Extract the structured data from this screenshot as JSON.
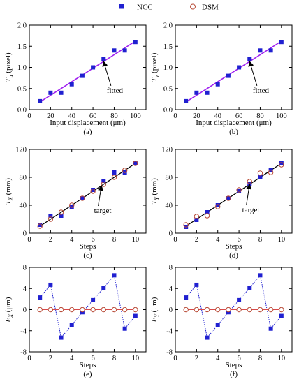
{
  "legend": {
    "items": [
      {
        "label": "NCC",
        "marker": "square",
        "color": "#2020d0"
      },
      {
        "label": "DSM",
        "marker": "circle",
        "color": "#b84a36"
      }
    ]
  },
  "colors": {
    "ncc": "#2020d0",
    "dsm": "#b84a36",
    "fit": "#a020f0",
    "target": "#000000",
    "zero_line": "#d84a4a",
    "ncc_line": "#2020d0"
  },
  "chart_data": [
    {
      "type": "scatter",
      "caption": "(a)",
      "xlabel": "Input displacement (μm)",
      "ylabel_main": "T",
      "ylabel_sub": "u",
      "ylabel_rest": " (pixel)",
      "xlim": [
        0,
        110
      ],
      "ylim": [
        0,
        2
      ],
      "xticks": [
        "0",
        "20",
        "40",
        "60",
        "80",
        "100"
      ],
      "xtick_values": [
        0,
        20,
        40,
        60,
        80,
        100
      ],
      "yticks": [
        "0.0",
        "0.5",
        "1.0",
        "1.5",
        "2.0"
      ],
      "ytick_values": [
        0,
        0.5,
        1,
        1.5,
        2
      ],
      "series": [
        {
          "name": "NCC",
          "x": [
            10,
            20,
            30,
            40,
            50,
            60,
            70,
            80,
            90,
            100
          ],
          "y": [
            0.2,
            0.4,
            0.4,
            0.6,
            0.8,
            1.0,
            1.2,
            1.4,
            1.4,
            1.6
          ]
        }
      ],
      "line": {
        "x": [
          10,
          100
        ],
        "y": [
          0.18,
          1.62
        ]
      },
      "annotation": {
        "text": "fitted",
        "xy": [
          70,
          1.14
        ],
        "text_xy": [
          73,
          0.4
        ]
      }
    },
    {
      "type": "scatter",
      "caption": "(b)",
      "xlabel": "Input displacement (μm)",
      "ylabel_main": "T",
      "ylabel_sub": "v",
      "ylabel_rest": " (pixel)",
      "xlim": [
        0,
        110
      ],
      "ylim": [
        0,
        2
      ],
      "xticks": [
        "0",
        "20",
        "40",
        "60",
        "80",
        "100"
      ],
      "xtick_values": [
        0,
        20,
        40,
        60,
        80,
        100
      ],
      "yticks": [
        "0.0",
        "0.5",
        "1.0",
        "1.5",
        "2.0"
      ],
      "ytick_values": [
        0,
        0.5,
        1,
        1.5,
        2
      ],
      "series": [
        {
          "name": "NCC",
          "x": [
            10,
            20,
            30,
            40,
            50,
            60,
            70,
            80,
            90,
            100
          ],
          "y": [
            0.2,
            0.4,
            0.4,
            0.6,
            0.8,
            1.0,
            1.2,
            1.4,
            1.4,
            1.6
          ]
        }
      ],
      "line": {
        "x": [
          10,
          100
        ],
        "y": [
          0.18,
          1.62
        ]
      },
      "annotation": {
        "text": "fitted",
        "xy": [
          70,
          1.14
        ],
        "text_xy": [
          73,
          0.4
        ]
      }
    },
    {
      "type": "scatter",
      "caption": "(c)",
      "xlabel": "Steps",
      "ylabel_main": "T",
      "ylabel_sub": "X",
      "ylabel_rest": " (mm)",
      "xlim": [
        0,
        11
      ],
      "ylim": [
        0,
        120
      ],
      "xticks": [
        "0",
        "2",
        "4",
        "6",
        "8",
        "10"
      ],
      "xtick_values": [
        0,
        2,
        4,
        6,
        8,
        10
      ],
      "yticks": [
        "0",
        "40",
        "80",
        "120"
      ],
      "ytick_values": [
        0,
        40,
        80,
        120
      ],
      "series": [
        {
          "name": "NCC",
          "x": [
            1,
            2,
            3,
            4,
            5,
            6,
            7,
            8,
            9,
            10
          ],
          "y": [
            12,
            25,
            25,
            38,
            50,
            62,
            75,
            87,
            87,
            100
          ]
        },
        {
          "name": "DSM",
          "x": [
            1,
            2,
            3,
            4,
            5,
            6,
            7,
            8,
            9,
            10
          ],
          "y": [
            10,
            20,
            30,
            40,
            50,
            60,
            70,
            80,
            90,
            100
          ]
        }
      ],
      "line": {
        "x": [
          1,
          10
        ],
        "y": [
          10,
          100
        ]
      },
      "annotation": {
        "text": "target",
        "xy": [
          6.8,
          68
        ],
        "text_xy": [
          6.1,
          29
        ]
      }
    },
    {
      "type": "scatter",
      "caption": "(d)",
      "xlabel": "Steps",
      "ylabel_main": "T",
      "ylabel_sub": "Y",
      "ylabel_rest": " (mm)",
      "xlim": [
        0,
        11
      ],
      "ylim": [
        0,
        120
      ],
      "xticks": [
        "0",
        "2",
        "4",
        "6",
        "8",
        "10"
      ],
      "xtick_values": [
        0,
        2,
        4,
        6,
        8,
        10
      ],
      "yticks": [
        "0",
        "40",
        "80",
        "120"
      ],
      "ytick_values": [
        0,
        40,
        80,
        120
      ],
      "series": [
        {
          "name": "NCC",
          "x": [
            1,
            2,
            3,
            4,
            5,
            6,
            7,
            8,
            9,
            10
          ],
          "y": [
            9,
            19,
            30,
            40,
            50,
            60,
            70,
            80,
            90,
            100
          ]
        },
        {
          "name": "DSM",
          "x": [
            1,
            2,
            3,
            4,
            5,
            6,
            7,
            8,
            9,
            10
          ],
          "y": [
            12,
            24,
            25,
            38,
            50,
            62,
            74,
            86,
            87,
            98
          ]
        }
      ],
      "line": {
        "x": [
          1,
          10
        ],
        "y": [
          10,
          100
        ]
      },
      "annotation": {
        "text": "target",
        "xy": [
          7,
          70
        ],
        "text_xy": [
          6.3,
          30
        ]
      }
    },
    {
      "type": "line",
      "caption": "(e)",
      "xlabel": "Steps",
      "ylabel_main": "E",
      "ylabel_sub": "X",
      "ylabel_rest": " (μm)",
      "xlim": [
        0,
        11
      ],
      "ylim": [
        -8,
        8
      ],
      "xticks": [
        "0",
        "2",
        "4",
        "6",
        "8",
        "10"
      ],
      "xtick_values": [
        0,
        2,
        4,
        6,
        8,
        10
      ],
      "yticks": [
        "-8",
        "-4",
        "0",
        "4",
        "8"
      ],
      "ytick_values": [
        -8,
        -4,
        0,
        4,
        8
      ],
      "series": [
        {
          "name": "NCC",
          "x": [
            1,
            2,
            3,
            4,
            5,
            6,
            7,
            8,
            9,
            10
          ],
          "y": [
            2.3,
            4.7,
            -5.3,
            -2.9,
            -0.5,
            1.8,
            4.1,
            6.5,
            -3.6,
            -1.2
          ]
        },
        {
          "name": "DSM",
          "x": [
            1,
            2,
            3,
            4,
            5,
            6,
            7,
            8,
            9,
            10
          ],
          "y": [
            0,
            0,
            0,
            0,
            0,
            0,
            0,
            0,
            0,
            0
          ]
        }
      ]
    },
    {
      "type": "line",
      "caption": "(f)",
      "xlabel": "Steps",
      "ylabel_main": "E",
      "ylabel_sub": "Y",
      "ylabel_rest": " (μm)",
      "xlim": [
        0,
        11
      ],
      "ylim": [
        -8,
        8
      ],
      "xticks": [
        "0",
        "2",
        "4",
        "6",
        "8",
        "10"
      ],
      "xtick_values": [
        0,
        2,
        4,
        6,
        8,
        10
      ],
      "yticks": [
        "-8",
        "-4",
        "0",
        "4",
        "8"
      ],
      "ytick_values": [
        -8,
        -4,
        0,
        4,
        8
      ],
      "series": [
        {
          "name": "NCC",
          "x": [
            1,
            2,
            3,
            4,
            5,
            6,
            7,
            8,
            9,
            10
          ],
          "y": [
            2.3,
            4.7,
            -5.3,
            -2.9,
            -0.5,
            1.8,
            4.1,
            6.5,
            -3.6,
            -1.2
          ]
        },
        {
          "name": "DSM",
          "x": [
            1,
            2,
            3,
            4,
            5,
            6,
            7,
            8,
            9,
            10
          ],
          "y": [
            0,
            0,
            0,
            0,
            0,
            0,
            0,
            0,
            0,
            0
          ]
        }
      ]
    }
  ]
}
